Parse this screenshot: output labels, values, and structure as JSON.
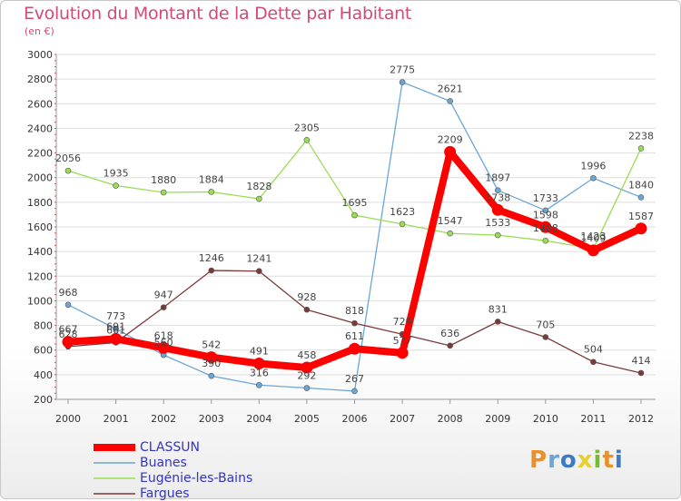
{
  "title": "Evolution du Montant de la Dette par Habitant",
  "subtitle": "(en €)",
  "colors": {
    "CLASSUN": "#ff0000",
    "Buanes": "#6aa6d6",
    "Eugénie-les-Bains": "#99dd55",
    "Fargues": "#7a3a3a",
    "axis": "#999999",
    "grid": "#dddddd",
    "title": "#d24a76"
  },
  "logo": {
    "text": "Proxiti",
    "colors": [
      "#e8902a",
      "#6aa6d6",
      "#3d7ac0",
      "#e8d02a",
      "#77bb33",
      "#e8902a",
      "#3d7ac0"
    ]
  },
  "chart_data": {
    "type": "line",
    "title": "Evolution du Montant de la Dette par Habitant",
    "subtitle": "(en €)",
    "x": [
      "2000",
      "2001",
      "2002",
      "2003",
      "2004",
      "2005",
      "2006",
      "2007",
      "2008",
      "2009",
      "2010",
      "2011",
      "2012"
    ],
    "ylim": [
      200,
      3000
    ],
    "yticks": [
      200,
      400,
      600,
      800,
      1000,
      1200,
      1400,
      1600,
      1800,
      2000,
      2200,
      2400,
      2600,
      2800,
      3000
    ],
    "grid": true,
    "legend_position": "bottom-left",
    "series": [
      {
        "name": "CLASSUN",
        "values": [
          667,
          691,
          618,
          542,
          491,
          458,
          611,
          577,
          2209,
          1738,
          1598,
          1409,
          1587
        ]
      },
      {
        "name": "Buanes",
        "values": [
          968,
          773,
          560,
          390,
          316,
          292,
          267,
          2775,
          2621,
          1897,
          1733,
          1996,
          1840
        ]
      },
      {
        "name": "Eugénie-les-Bains",
        "values": [
          2056,
          1935,
          1880,
          1884,
          1828,
          2305,
          1695,
          1623,
          1547,
          1533,
          1488,
          1423,
          2238
        ]
      },
      {
        "name": "Fargues",
        "values": [
          628,
          661,
          947,
          1246,
          1241,
          928,
          818,
          729,
          636,
          831,
          705,
          504,
          414
        ]
      }
    ]
  }
}
